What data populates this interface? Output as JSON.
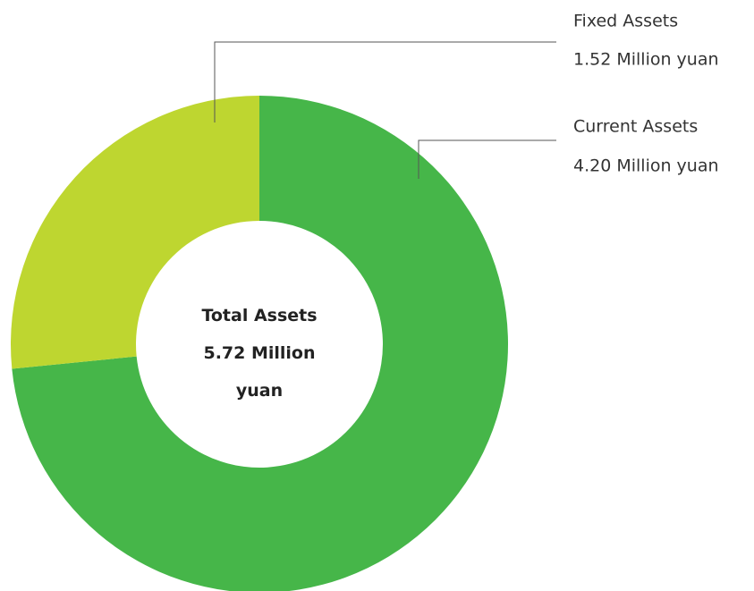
{
  "chart_data": {
    "type": "donut",
    "categories": [
      "Current Assets",
      "Fixed Assets"
    ],
    "values": [
      4.2,
      1.52
    ],
    "value_labels": [
      "4.20 Million yuan",
      "1.52 Million yuan"
    ],
    "colors": [
      "#46b649",
      "#bed630"
    ],
    "center_title": "Total Assets",
    "center_value_label": "5.72 Million yuan"
  }
}
